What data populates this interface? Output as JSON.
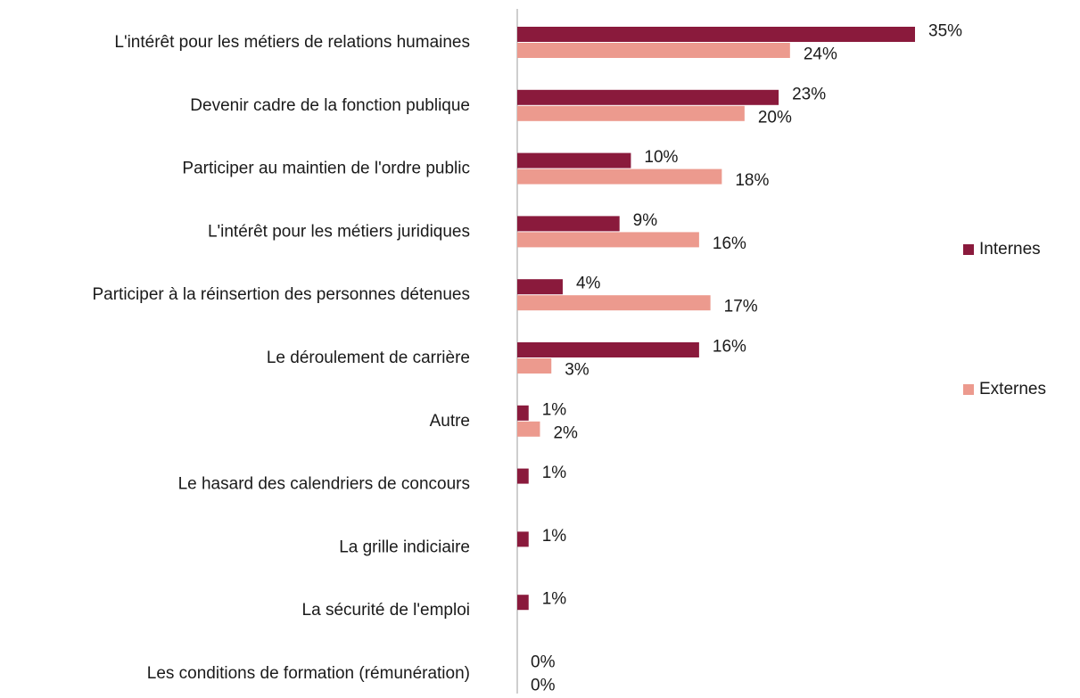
{
  "chart_data": {
    "type": "bar",
    "orientation": "horizontal",
    "categories": [
      "L'intérêt pour les métiers de relations humaines",
      "Devenir cadre de la fonction publique",
      "Participer au maintien de l'ordre public",
      "L'intérêt pour les métiers juridiques",
      "Participer à la réinsertion des personnes détenues",
      "Le déroulement de carrière",
      "Autre",
      "Le hasard des calendriers de concours",
      "La grille indiciaire",
      "La sécurité de l'emploi",
      "Les conditions de formation (rémunération)"
    ],
    "series": [
      {
        "name": "Internes",
        "color": "#8a1a3c",
        "values": [
          35,
          23,
          10,
          9,
          4,
          16,
          1,
          1,
          1,
          1,
          0
        ],
        "value_labels": [
          "35%",
          "23%",
          "10%",
          "9%",
          "4%",
          "16%",
          "1%",
          "1%",
          "1%",
          "1%",
          "0%"
        ]
      },
      {
        "name": "Externes",
        "color": "#ec9a8e",
        "values": [
          24,
          20,
          18,
          16,
          17,
          3,
          2,
          null,
          null,
          null,
          0
        ],
        "value_labels": [
          "24%",
          "20%",
          "18%",
          "16%",
          "17%",
          "3%",
          "2%",
          null,
          null,
          null,
          "0%"
        ]
      }
    ],
    "legend": "right"
  }
}
